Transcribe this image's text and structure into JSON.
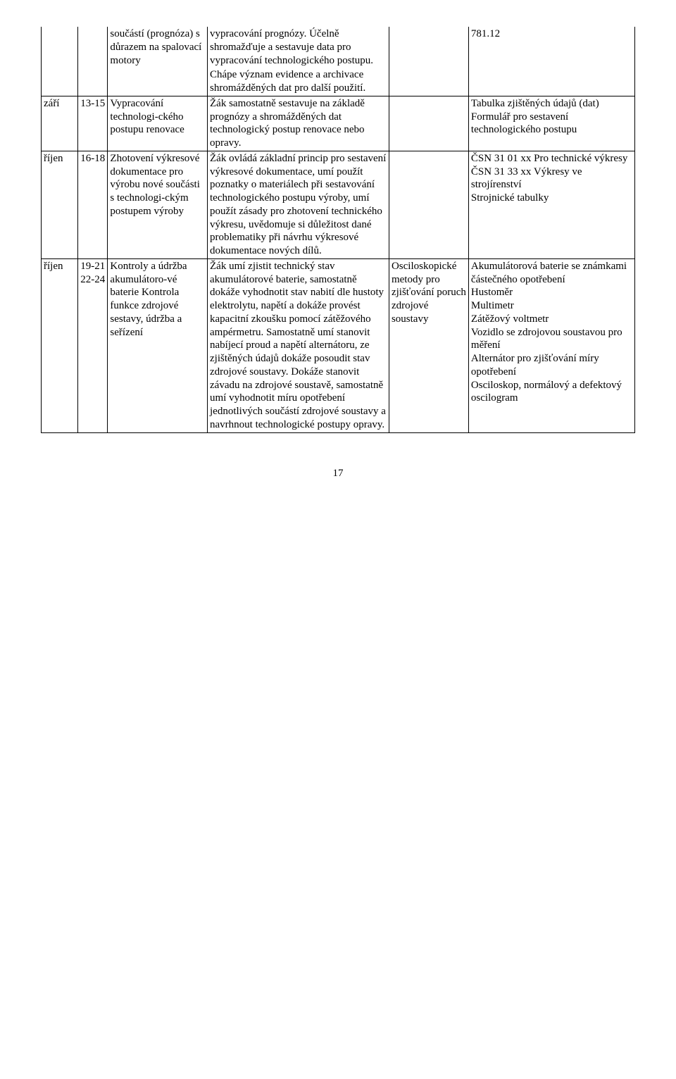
{
  "rows": [
    {
      "c1": "",
      "c2": "",
      "c3": "součástí (prognóza) s důrazem na spalovací motory",
      "c4": "vypracování prognózy. Účelně shromažďuje a sestavuje data pro vypracování technologického postupu.",
      "c5": "",
      "c6": "781.12",
      "noTop": true,
      "noBottom12": true,
      "noBottom456": true
    },
    {
      "c1": "",
      "c2": "",
      "c3": "",
      "c4": "Chápe význam evidence a archivace shromážděných dat pro další použití.",
      "c5": "",
      "c6": "",
      "noTop12": true,
      "noTop456": true
    },
    {
      "c1": "září",
      "c2": "13-15",
      "c3": "Vypracování technologi-ckého postupu renovace",
      "c4": "Žák samostatně sestavuje na základě prognózy a shromážděných dat technologický postup renovace nebo opravy.",
      "c5": "",
      "c6": "Tabulka zjištěných údajů (dat)\nFormulář pro sestavení technologického postupu"
    },
    {
      "c1": "říjen",
      "c2": "16-18",
      "c3": "Zhotovení výkresové dokumentace pro výrobu nové součásti s technologi-ckým postupem výroby",
      "c4": "Žák ovládá základní princip pro sestavení výkresové dokumentace, umí použít poznatky o materiálech při sestavování technologického postupu výroby, umí použít zásady pro zhotovení technického výkresu, uvědomuje si důležitost dané problematiky při návrhu výkresové dokumentace nových dílů.",
      "c5": "",
      "c6": "ČSN 31 01 xx Pro technické výkresy\nČSN 31 33 xx Výkresy ve strojírenství\nStrojnické tabulky"
    },
    {
      "c1": "říjen",
      "c2": "19-21 22-24",
      "c3": "Kontroly a údržba akumulátoro-vé baterie Kontrola funkce zdrojové sestavy, údržba a seřízení",
      "c4": "Žák umí zjistit technický stav akumulátorové baterie, samostatně dokáže vyhodnotit stav nabití dle hustoty elektrolytu, napětí a dokáže provést kapacitní zkoušku pomocí zátěžového ampérmetru. Samostatně umí stanovit nabíjecí proud a napětí alternátoru, ze zjištěných údajů dokáže posoudit stav zdrojové soustavy. Dokáže stanovit závadu na zdrojové soustavě, samostatně umí vyhodnotit míru opotřebení jednotlivých  součástí zdrojové soustavy a navrhnout technologické postupy opravy.",
      "c5": "Osciloskopické metody pro zjišťování poruch zdrojové soustavy",
      "c6": "Akumulátorová baterie se známkami částečného opotřebení\nHustoměr\nMultimetr\nZátěžový voltmetr\nVozidlo se zdrojovou soustavou pro měření\nAlternátor pro zjišťování míry opotřebení\nOsciloskop, normálový a defektový oscilogram"
    }
  ],
  "pageNumber": "17"
}
